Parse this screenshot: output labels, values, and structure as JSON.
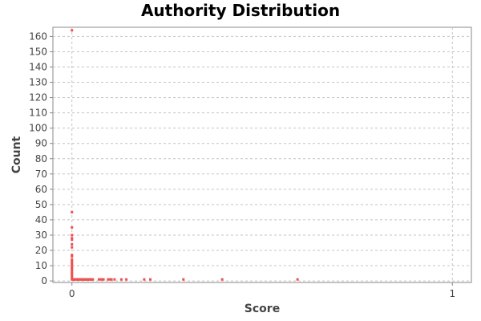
{
  "chart_data": {
    "type": "scatter",
    "title": "Authority Distribution",
    "xlabel": "Score",
    "ylabel": "Count",
    "xlim": [
      -0.05,
      1.05
    ],
    "ylim": [
      -1,
      166
    ],
    "xticks": [
      0,
      1
    ],
    "yticks": [
      0,
      10,
      20,
      30,
      40,
      50,
      60,
      70,
      80,
      90,
      100,
      110,
      120,
      130,
      140,
      150,
      160
    ],
    "grid": true,
    "point_color": "#f05050",
    "points": [
      [
        0.0,
        164
      ],
      [
        0.0,
        45
      ],
      [
        0.0,
        35
      ],
      [
        0.0,
        30
      ],
      [
        0.0,
        28
      ],
      [
        0.0,
        27
      ],
      [
        0.0,
        24
      ],
      [
        0.0,
        22
      ],
      [
        0.0,
        17
      ],
      [
        0.0,
        16
      ],
      [
        0.0,
        14
      ],
      [
        0.0,
        13
      ],
      [
        0.0,
        12
      ],
      [
        0.0,
        11
      ],
      [
        0.0,
        10
      ],
      [
        0.0,
        9
      ],
      [
        0.0,
        8
      ],
      [
        0.0,
        7
      ],
      [
        0.0,
        6
      ],
      [
        0.0,
        5
      ],
      [
        0.0,
        4
      ],
      [
        0.0,
        3
      ],
      [
        0.0,
        2
      ],
      [
        0.0,
        1
      ],
      [
        0.002,
        1
      ],
      [
        0.004,
        1
      ],
      [
        0.006,
        1
      ],
      [
        0.008,
        1
      ],
      [
        0.01,
        1
      ],
      [
        0.012,
        1
      ],
      [
        0.014,
        1
      ],
      [
        0.016,
        1
      ],
      [
        0.018,
        1
      ],
      [
        0.02,
        1
      ],
      [
        0.022,
        1
      ],
      [
        0.024,
        1
      ],
      [
        0.026,
        1
      ],
      [
        0.028,
        1
      ],
      [
        0.03,
        1
      ],
      [
        0.032,
        1
      ],
      [
        0.034,
        1
      ],
      [
        0.036,
        1
      ],
      [
        0.038,
        1
      ],
      [
        0.04,
        1
      ],
      [
        0.042,
        1
      ],
      [
        0.044,
        1
      ],
      [
        0.046,
        1
      ],
      [
        0.048,
        1
      ],
      [
        0.05,
        1
      ],
      [
        0.052,
        1
      ],
      [
        0.055,
        1
      ],
      [
        0.071,
        1
      ],
      [
        0.075,
        1
      ],
      [
        0.079,
        1
      ],
      [
        0.083,
        1
      ],
      [
        0.095,
        1
      ],
      [
        0.1,
        1
      ],
      [
        0.104,
        1
      ],
      [
        0.112,
        1
      ],
      [
        0.13,
        1
      ],
      [
        0.143,
        1
      ],
      [
        0.19,
        1
      ],
      [
        0.206,
        1
      ],
      [
        0.293,
        1
      ],
      [
        0.395,
        1
      ],
      [
        0.593,
        1
      ]
    ]
  }
}
